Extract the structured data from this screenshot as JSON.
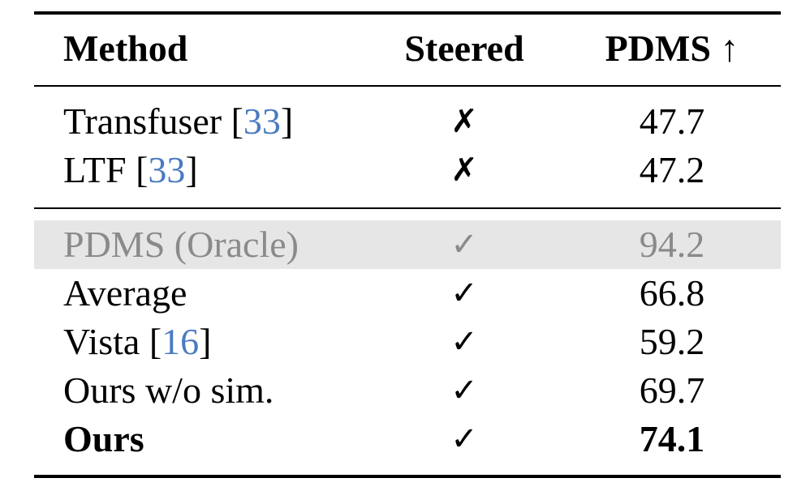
{
  "table": {
    "header": [
      "Method",
      "Steered",
      "PDMS ↑"
    ],
    "groups": [
      [
        {
          "method": [
            {
              "text": "Transfuser "
            },
            {
              "text": "["
            },
            {
              "text": "33",
              "cite": true
            },
            {
              "text": "]"
            }
          ],
          "steered": "✗",
          "pdms": 47.7
        },
        {
          "method": [
            {
              "text": "LTF "
            },
            {
              "text": "["
            },
            {
              "text": "33",
              "cite": true
            },
            {
              "text": "]"
            }
          ],
          "steered": "✗",
          "pdms": 47.2
        }
      ],
      [
        {
          "method": [
            {
              "text": "PDMS (Oracle)"
            }
          ],
          "steered": "✓",
          "pdms": 94.2,
          "highlight": true
        },
        {
          "method": [
            {
              "text": "Average"
            }
          ],
          "steered": "✓",
          "pdms": 66.8
        },
        {
          "method": [
            {
              "text": "Vista "
            },
            {
              "text": "["
            },
            {
              "text": "16",
              "cite": true
            },
            {
              "text": "]"
            }
          ],
          "steered": "✓",
          "pdms": 59.2
        },
        {
          "method": [
            {
              "text": "Ours w/o sim."
            }
          ],
          "steered": "✓",
          "pdms": 69.7
        },
        {
          "method": [
            {
              "text": "Ours"
            }
          ],
          "steered": "✓",
          "pdms": 74.1,
          "bold": true
        }
      ]
    ]
  }
}
